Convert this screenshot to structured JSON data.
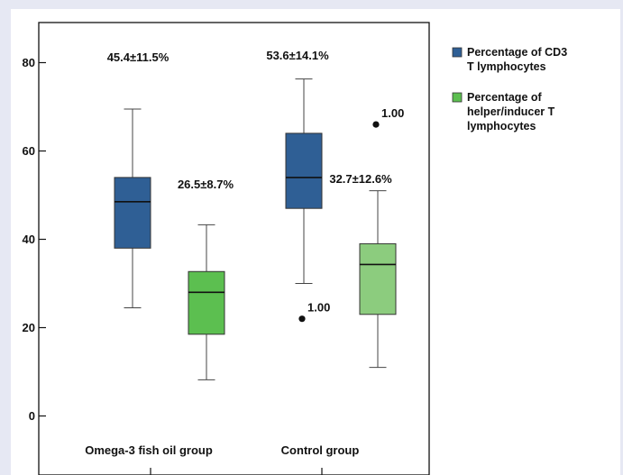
{
  "chart_data": {
    "type": "boxplot",
    "title": "",
    "xlabel": "",
    "ylabel": "",
    "ylim": [
      -2,
      84
    ],
    "yticks": [
      0,
      20,
      40,
      60,
      80
    ],
    "categories": [
      "Omega-3 fish oil group",
      "Control group"
    ],
    "legend_position": "right",
    "grid": false,
    "series": [
      {
        "name": "Percentage of CD3 T lymphocytes",
        "legend_lines": [
          "Percentage of CD3",
          "T lymphocytes"
        ],
        "color": "#2f5f95",
        "boxes": [
          {
            "category": "Omega-3 fish oil group",
            "whisker_low": 24.5,
            "q1": 38,
            "median": 48.5,
            "q3": 54,
            "whisker_high": 69.5,
            "outliers": [],
            "stat_label": "45.4±11.5%"
          },
          {
            "category": "Control group",
            "whisker_low": 30,
            "q1": 47,
            "median": 54,
            "q3": 64,
            "whisker_high": 76.3,
            "outliers": [
              {
                "value": 22,
                "label": "1.00"
              }
            ],
            "stat_label": "53.6±14.1%"
          }
        ]
      },
      {
        "name": "Percentage of helper/inducer T lymphocytes",
        "legend_lines": [
          "Percentage of",
          "helper/inducer T",
          "lymphocytes"
        ],
        "color": "#5cbf50",
        "boxes": [
          {
            "category": "Omega-3 fish oil group",
            "whisker_low": 8.2,
            "q1": 18.5,
            "median": 28,
            "q3": 32.7,
            "whisker_high": 43.3,
            "outliers": [],
            "stat_label": "26.5±8.7%",
            "color": "#5cbf50"
          },
          {
            "category": "Control group",
            "whisker_low": 11,
            "q1": 23,
            "median": 34.3,
            "q3": 39,
            "whisker_high": 51,
            "outliers": [
              {
                "value": 66,
                "label": "1.00"
              }
            ],
            "stat_label": "32.7±12.6%",
            "color": "#8ccc7e"
          }
        ]
      }
    ]
  }
}
